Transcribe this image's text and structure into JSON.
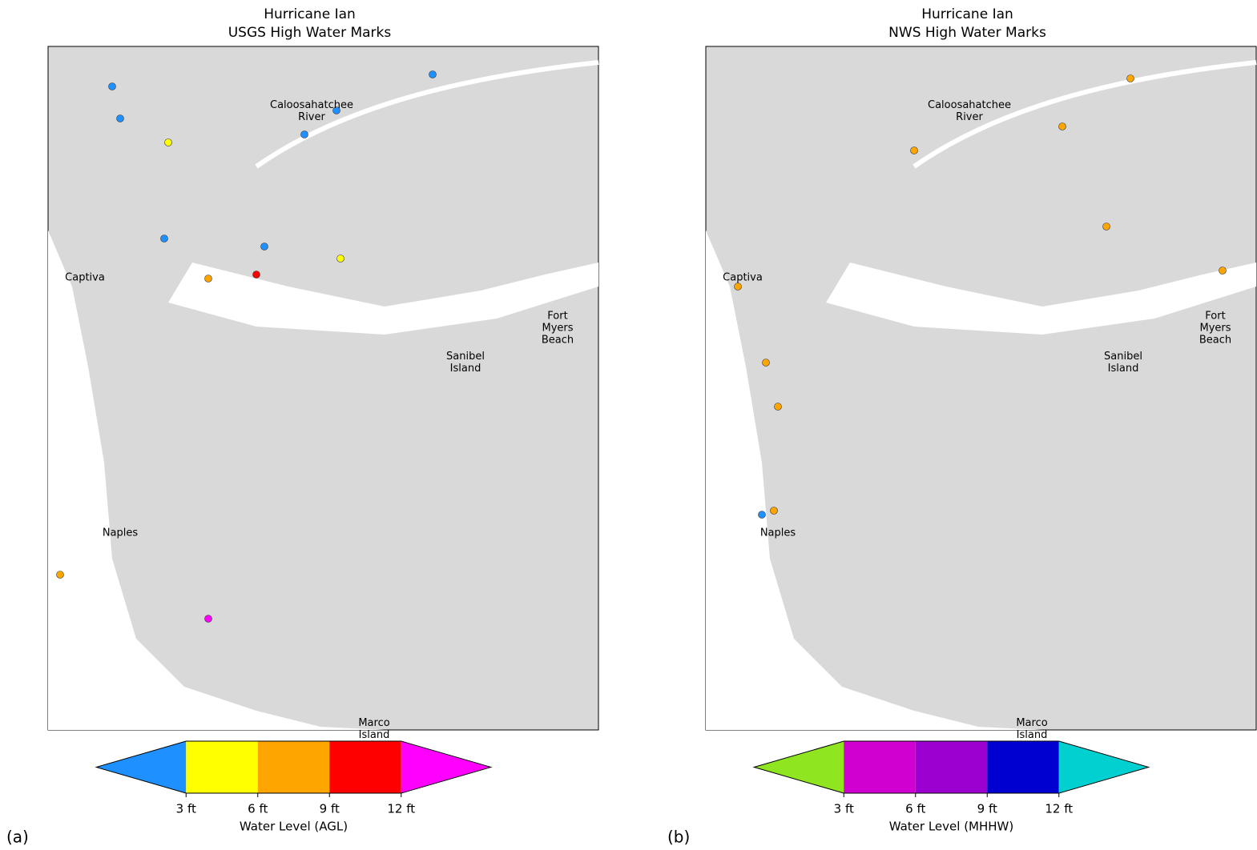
{
  "panels": [
    {
      "letter": "(a)",
      "title": [
        "Hurricane Ian",
        "USGS High Water Marks"
      ],
      "places": [
        [
          "Caloosahatchee",
          "River"
        ],
        [
          "Captiva"
        ],
        [
          "Fort",
          "Myers",
          "Beach"
        ],
        [
          "Sanibel",
          "Island"
        ],
        [
          "Naples"
        ],
        [
          "Marco",
          "Island"
        ]
      ],
      "colorbar": {
        "colors": [
          "#1e90ff",
          "#ffff00",
          "#ffa500",
          "#ff0000",
          "#ff00ff"
        ],
        "ticks": [
          "3 ft",
          "6 ft",
          "9 ft",
          "12 ft"
        ],
        "label": "Water Level (AGL)"
      }
    },
    {
      "letter": "(b)",
      "title": [
        "Hurricane Ian",
        "NWS High Water Marks"
      ],
      "places": [
        [
          "Caloosahatchee",
          "River"
        ],
        [
          "Captiva"
        ],
        [
          "Fort",
          "Myers",
          "Beach"
        ],
        [
          "Sanibel",
          "Island"
        ],
        [
          "Naples"
        ],
        [
          "Marco",
          "Island"
        ]
      ],
      "colorbar": {
        "colors": [
          "#8ee520",
          "#d000d0",
          "#9b00d0",
          "#0000d0",
          "#00d0d0"
        ],
        "ticks": [
          "3 ft",
          "6 ft",
          "9 ft",
          "12 ft"
        ],
        "label": "Water Level (MHHW)"
      }
    }
  ]
}
